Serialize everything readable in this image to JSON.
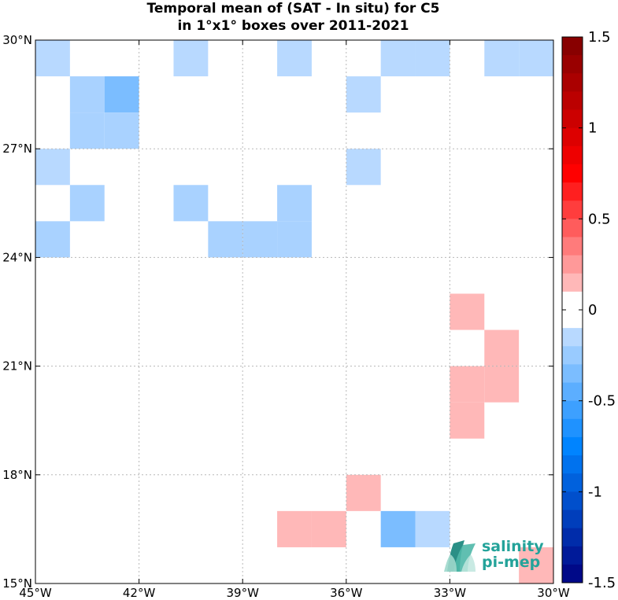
{
  "chart_data": {
    "type": "heatmap",
    "title": "Temporal mean of (SAT - In situ) for C5",
    "subtitle": "in 1°x1° boxes over 2011-2021",
    "x_ticks": [
      "45°W",
      "42°W",
      "39°W",
      "36°W",
      "33°W",
      "30°W"
    ],
    "y_ticks": [
      "15°N",
      "18°N",
      "21°N",
      "24°N",
      "27°N",
      "30°N"
    ],
    "xlim": [
      -45,
      -30
    ],
    "ylim": [
      15,
      30
    ],
    "grid": true,
    "colorbar": {
      "range": [
        -1.5,
        1.5
      ],
      "ticks": [
        "1.5",
        "1",
        "0.5",
        "0",
        "-0.5",
        "-1",
        "-1.5"
      ]
    },
    "cells": [
      {
        "lon": -45,
        "lat": 29,
        "value": -0.15
      },
      {
        "lon": -41,
        "lat": 29,
        "value": -0.15
      },
      {
        "lon": -38,
        "lat": 29,
        "value": -0.15
      },
      {
        "lon": -35,
        "lat": 29,
        "value": -0.15
      },
      {
        "lon": -34,
        "lat": 29,
        "value": -0.15
      },
      {
        "lon": -32,
        "lat": 29,
        "value": -0.15
      },
      {
        "lon": -31,
        "lat": 29,
        "value": -0.15
      },
      {
        "lon": -44,
        "lat": 28,
        "value": -0.2
      },
      {
        "lon": -43,
        "lat": 28,
        "value": -0.35
      },
      {
        "lon": -36,
        "lat": 28,
        "value": -0.15
      },
      {
        "lon": -44,
        "lat": 27,
        "value": -0.2
      },
      {
        "lon": -43,
        "lat": 27,
        "value": -0.2
      },
      {
        "lon": -45,
        "lat": 26,
        "value": -0.15
      },
      {
        "lon": -36,
        "lat": 26,
        "value": -0.15
      },
      {
        "lon": -44,
        "lat": 25,
        "value": -0.2
      },
      {
        "lon": -41,
        "lat": 25,
        "value": -0.2
      },
      {
        "lon": -38,
        "lat": 25,
        "value": -0.2
      },
      {
        "lon": -45,
        "lat": 24,
        "value": -0.2
      },
      {
        "lon": -40,
        "lat": 24,
        "value": -0.2
      },
      {
        "lon": -39,
        "lat": 24,
        "value": -0.2
      },
      {
        "lon": -38,
        "lat": 24,
        "value": -0.2
      },
      {
        "lon": -33,
        "lat": 22,
        "value": 0.15
      },
      {
        "lon": -32,
        "lat": 21,
        "value": 0.15
      },
      {
        "lon": -33,
        "lat": 20,
        "value": 0.15
      },
      {
        "lon": -32,
        "lat": 20,
        "value": 0.15
      },
      {
        "lon": -33,
        "lat": 19,
        "value": 0.15
      },
      {
        "lon": -36,
        "lat": 17,
        "value": 0.15
      },
      {
        "lon": -38,
        "lat": 16,
        "value": 0.15
      },
      {
        "lon": -37,
        "lat": 16,
        "value": 0.15
      },
      {
        "lon": -35,
        "lat": 16,
        "value": -0.35
      },
      {
        "lon": -34,
        "lat": 16,
        "value": -0.15
      },
      {
        "lon": -31,
        "lat": 15,
        "value": 0.15
      }
    ]
  },
  "logo": {
    "line1": "salinity",
    "line2": "pi-mep",
    "color": "#24a39a"
  }
}
